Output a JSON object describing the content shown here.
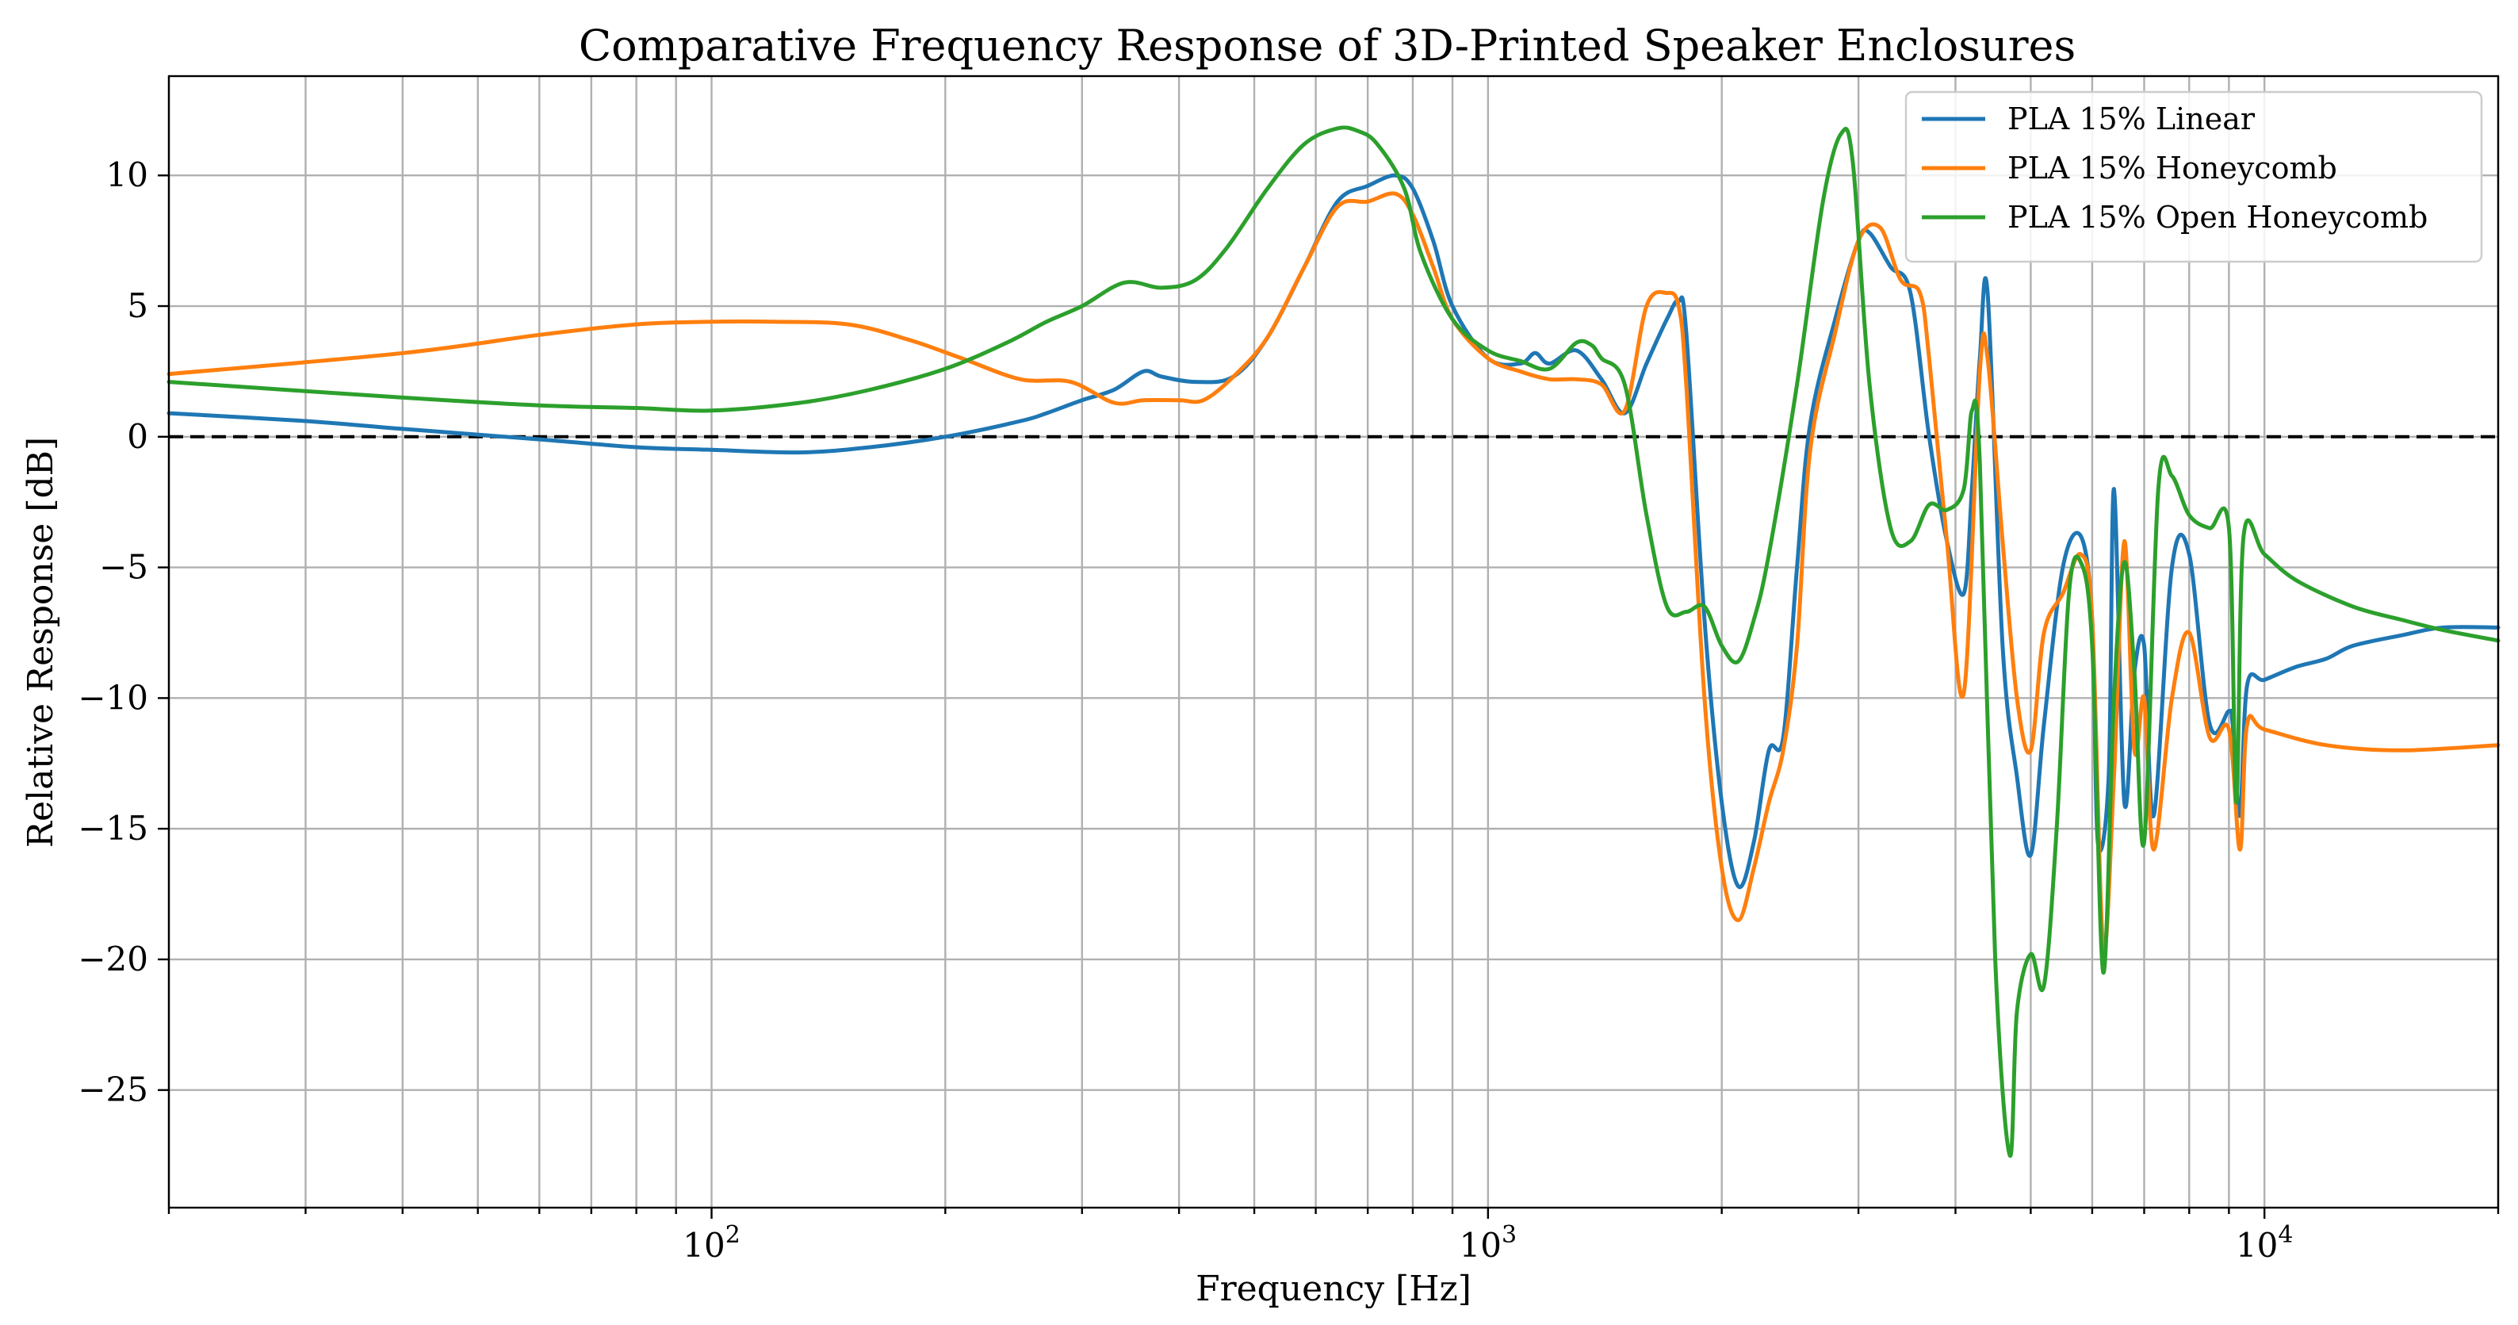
{
  "chart_data": {
    "type": "line",
    "title": "Comparative Frequency Response of 3D-Printed Speaker Enclosures",
    "xlabel": "Frequency [Hz]",
    "ylabel": "Relative Response [dB]",
    "xscale": "log",
    "xlim": [
      20,
      20000
    ],
    "ylim": [
      -29.5,
      13.8
    ],
    "yticks": [
      10,
      5,
      0,
      -5,
      -10,
      -15,
      -20,
      -25
    ],
    "ytick_labels": [
      "10",
      "5",
      "0",
      "−5",
      "−10",
      "−15",
      "−20",
      "−25"
    ],
    "xticks": [
      {
        "value": 100,
        "base": "10",
        "exp": "2"
      },
      {
        "value": 1000,
        "base": "10",
        "exp": "3"
      },
      {
        "value": 10000,
        "base": "10",
        "exp": "4"
      }
    ],
    "grid": true,
    "reference_line": {
      "y": 0,
      "style": "dashed",
      "color": "#000000"
    },
    "legend": {
      "position": "top-right"
    },
    "series": [
      {
        "name": "PLA 15% Linear",
        "color": "#1f77b4",
        "x": [
          20,
          30,
          40,
          60,
          80,
          100,
          130,
          160,
          200,
          250,
          270,
          300,
          330,
          360,
          380,
          420,
          470,
          520,
          580,
          640,
          700,
          760,
          800,
          850,
          900,
          1000,
          1100,
          1150,
          1200,
          1300,
          1400,
          1500,
          1600,
          1700,
          1760,
          1800,
          1900,
          2000,
          2100,
          2200,
          2300,
          2400,
          2500,
          2600,
          2800,
          3000,
          3100,
          3300,
          3500,
          3700,
          3900,
          4100,
          4200,
          4300,
          4400,
          4600,
          4800,
          5000,
          5200,
          5500,
          5800,
          6000,
          6100,
          6300,
          6400,
          6600,
          6800,
          7000,
          7200,
          7600,
          8000,
          8500,
          9000,
          9100,
          9300,
          9500,
          10000,
          11000,
          12000,
          13000,
          15000,
          17000,
          20000
        ],
        "y": [
          0.9,
          0.6,
          0.3,
          -0.1,
          -0.4,
          -0.5,
          -0.6,
          -0.4,
          0.0,
          0.6,
          0.9,
          1.4,
          1.8,
          2.5,
          2.3,
          2.1,
          2.3,
          3.8,
          6.5,
          9.0,
          9.6,
          10.0,
          9.5,
          7.5,
          5.0,
          3.0,
          2.8,
          3.2,
          2.8,
          3.3,
          2.2,
          0.9,
          2.8,
          4.5,
          5.2,
          4.0,
          -7.0,
          -14.0,
          -17.2,
          -15.5,
          -12.0,
          -11.5,
          -5.0,
          0.5,
          4.5,
          7.5,
          7.8,
          6.5,
          5.5,
          0.0,
          -4.0,
          -6.0,
          -2.0,
          3.0,
          5.5,
          -8.0,
          -13.0,
          -16.0,
          -11.0,
          -5.0,
          -3.8,
          -7.0,
          -15.5,
          -13.0,
          -2.0,
          -14.0,
          -9.0,
          -8.0,
          -14.5,
          -5.0,
          -4.5,
          -11.0,
          -10.5,
          -11.0,
          -14.5,
          -9.5,
          -9.3,
          -8.8,
          -8.5,
          -8.0,
          -7.6,
          -7.3,
          -7.3
        ]
      },
      {
        "name": "PLA 15% Honeycomb",
        "color": "#ff7f0e",
        "x": [
          20,
          40,
          60,
          80,
          100,
          120,
          150,
          180,
          210,
          250,
          290,
          330,
          360,
          400,
          430,
          470,
          520,
          580,
          640,
          700,
          760,
          800,
          850,
          900,
          1000,
          1100,
          1200,
          1300,
          1400,
          1500,
          1600,
          1700,
          1760,
          1800,
          1900,
          2000,
          2100,
          2200,
          2300,
          2400,
          2500,
          2600,
          2800,
          3000,
          3200,
          3400,
          3600,
          3700,
          3900,
          4100,
          4300,
          4400,
          4600,
          4800,
          5000,
          5200,
          5500,
          5800,
          6000,
          6200,
          6400,
          6600,
          6800,
          7000,
          7200,
          7600,
          8000,
          8500,
          9000,
          9300,
          9500,
          10000,
          12000,
          15000,
          20000
        ],
        "y": [
          2.4,
          3.2,
          3.9,
          4.3,
          4.4,
          4.4,
          4.3,
          3.7,
          3.0,
          2.2,
          2.1,
          1.3,
          1.4,
          1.4,
          1.4,
          2.3,
          3.8,
          6.5,
          8.8,
          9.0,
          9.3,
          8.5,
          6.5,
          4.5,
          3.0,
          2.5,
          2.2,
          2.2,
          2.0,
          1.0,
          5.0,
          5.5,
          5.0,
          2.0,
          -10.0,
          -16.5,
          -18.5,
          -16.5,
          -14.0,
          -12.0,
          -8.0,
          -0.5,
          4.0,
          7.5,
          8.0,
          6.0,
          5.5,
          3.0,
          -4.0,
          -9.8,
          2.5,
          3.0,
          -4.0,
          -10.0,
          -12.0,
          -7.5,
          -6.0,
          -4.5,
          -7.0,
          -19.5,
          -13.0,
          -4.0,
          -12.0,
          -10.0,
          -15.8,
          -10.0,
          -7.5,
          -11.5,
          -11.2,
          -15.8,
          -11.0,
          -11.2,
          -11.8,
          -12.0,
          -11.8
        ]
      },
      {
        "name": "PLA 15% Open Honeycomb",
        "color": "#2ca02c",
        "x": [
          20,
          40,
          60,
          80,
          100,
          130,
          160,
          200,
          240,
          270,
          300,
          340,
          380,
          420,
          460,
          520,
          580,
          640,
          680,
          720,
          780,
          820,
          900,
          1000,
          1100,
          1200,
          1300,
          1360,
          1400,
          1500,
          1600,
          1700,
          1800,
          1900,
          2000,
          2100,
          2200,
          2300,
          2500,
          2700,
          2850,
          2950,
          3100,
          3300,
          3500,
          3700,
          3900,
          4100,
          4200,
          4300,
          4500,
          4700,
          4800,
          5000,
          5200,
          5400,
          5600,
          5800,
          6000,
          6200,
          6400,
          6600,
          6800,
          7000,
          7300,
          7600,
          8000,
          8500,
          9000,
          9200,
          9400,
          10000,
          11000,
          13000,
          15000,
          17000,
          20000
        ],
        "y": [
          2.1,
          1.5,
          1.2,
          1.1,
          1.0,
          1.3,
          1.8,
          2.6,
          3.6,
          4.4,
          5.0,
          5.9,
          5.7,
          6.0,
          7.2,
          9.5,
          11.2,
          11.8,
          11.7,
          11.2,
          9.5,
          7.0,
          4.5,
          3.3,
          2.9,
          2.6,
          3.6,
          3.5,
          3.0,
          2.0,
          -3.0,
          -6.5,
          -6.7,
          -6.5,
          -8.0,
          -8.6,
          -7.0,
          -4.5,
          2.0,
          9.0,
          11.6,
          10.5,
          2.0,
          -3.5,
          -4.0,
          -2.6,
          -2.8,
          -2.0,
          1.0,
          -1.0,
          -20.0,
          -27.5,
          -22.0,
          -19.8,
          -21.0,
          -15.0,
          -6.0,
          -4.8,
          -8.0,
          -20.5,
          -10.0,
          -4.8,
          -9.0,
          -15.5,
          -2.0,
          -1.5,
          -3.0,
          -3.5,
          -3.5,
          -14.0,
          -3.8,
          -4.5,
          -5.5,
          -6.5,
          -7.0,
          -7.4,
          -7.8
        ]
      }
    ]
  }
}
